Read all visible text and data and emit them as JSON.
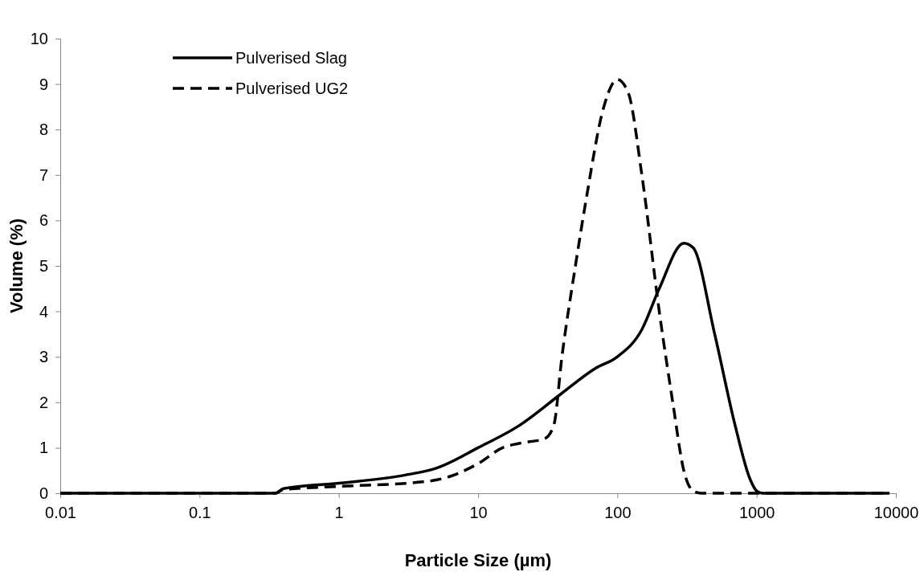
{
  "chart_data": {
    "type": "line",
    "xlabel": "Particle Size (µm)",
    "ylabel": "Volume (%)",
    "log": "x",
    "xlim": [
      0.01,
      10000
    ],
    "xticks": [
      0.01,
      0.1,
      1,
      10,
      100,
      1000,
      10000
    ],
    "ylim": [
      0,
      10
    ],
    "yticks": [
      0,
      1,
      2,
      3,
      4,
      5,
      6,
      7,
      8,
      9,
      10
    ],
    "grid": false,
    "legend": "top left",
    "marker": "none",
    "series": [
      {
        "name": "Pulverised Slag",
        "color": "#000000",
        "line_style": "solid",
        "x": [
          0.01,
          0.1,
          0.35,
          0.4,
          1,
          3,
          5,
          10,
          20,
          40,
          70,
          100,
          150,
          200,
          300,
          350,
          500,
          700,
          900,
          1000,
          1100,
          3000,
          9000
        ],
        "values": [
          0,
          0,
          0,
          0.1,
          0.22,
          0.4,
          0.55,
          1.0,
          1.5,
          2.2,
          2.75,
          3.0,
          3.6,
          4.5,
          5.5,
          5.4,
          3.5,
          1.5,
          0.3,
          0.05,
          0,
          0,
          0
        ]
      },
      {
        "name": "Pulverised UG2",
        "color": "#000000",
        "line_style": "dashed",
        "x": [
          0.01,
          0.1,
          0.35,
          0.4,
          1,
          4,
          6,
          10,
          15,
          20,
          30,
          35,
          40,
          50,
          60,
          80,
          100,
          120,
          150,
          200,
          250,
          300,
          350,
          400,
          1000,
          9000
        ],
        "values": [
          0,
          0,
          0,
          0.08,
          0.15,
          0.25,
          0.35,
          0.65,
          1.0,
          1.1,
          1.2,
          1.5,
          3.0,
          5.0,
          6.5,
          8.5,
          9.1,
          8.8,
          7.0,
          4.0,
          2.0,
          0.5,
          0.05,
          0,
          0,
          0
        ]
      }
    ]
  }
}
